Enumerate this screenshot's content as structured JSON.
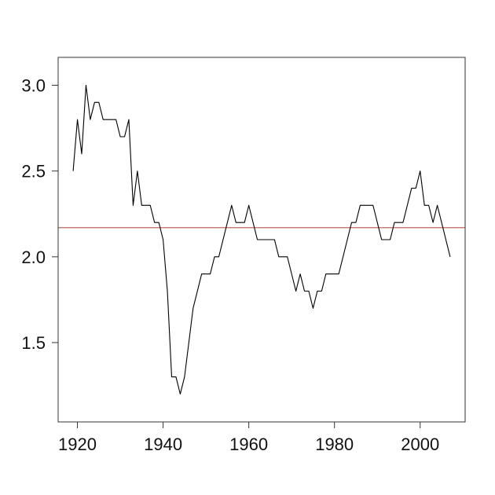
{
  "chart_data": {
    "type": "line",
    "title": "",
    "xlabel": "",
    "ylabel": "",
    "xlim": [
      1915.5,
      2010.5
    ],
    "ylim": [
      1.0375,
      3.1625
    ],
    "x_ticks": [
      1920,
      1940,
      1960,
      1980,
      2000
    ],
    "x_tick_labels": [
      "1920",
      "1940",
      "1960",
      "1980",
      "2000"
    ],
    "y_ticks": [
      1.5,
      2.0,
      2.5,
      3.0
    ],
    "y_tick_labels": [
      "1.5",
      "2.0",
      "2.5",
      "3.0"
    ],
    "grid": false,
    "legend": "none",
    "series": [
      {
        "color": "#000000",
        "x": [
          1919,
          1920,
          1921,
          1922,
          1923,
          1924,
          1925,
          1926,
          1927,
          1928,
          1929,
          1930,
          1931,
          1932,
          1933,
          1934,
          1935,
          1936,
          1937,
          1938,
          1939,
          1940,
          1941,
          1942,
          1943,
          1944,
          1945,
          1946,
          1947,
          1948,
          1949,
          1950,
          1951,
          1952,
          1953,
          1954,
          1955,
          1956,
          1957,
          1958,
          1959,
          1960,
          1961,
          1962,
          1963,
          1964,
          1965,
          1966,
          1967,
          1968,
          1969,
          1970,
          1971,
          1972,
          1973,
          1974,
          1975,
          1976,
          1977,
          1978,
          1979,
          1980,
          1981,
          1982,
          1983,
          1984,
          1985,
          1986,
          1987,
          1988,
          1989,
          1990,
          1991,
          1992,
          1993,
          1994,
          1995,
          1996,
          1997,
          1998,
          1999,
          2000,
          2001,
          2002,
          2003,
          2004,
          2005,
          2006,
          2007
        ],
        "y": [
          2.5,
          2.8,
          2.6,
          3.0,
          2.8,
          2.9,
          2.9,
          2.8,
          2.8,
          2.8,
          2.8,
          2.7,
          2.7,
          2.8,
          2.3,
          2.5,
          2.3,
          2.3,
          2.3,
          2.2,
          2.2,
          2.1,
          1.8,
          1.3,
          1.3,
          1.2,
          1.3,
          1.5,
          1.7,
          1.8,
          1.9,
          1.9,
          1.9,
          2.0,
          2.0,
          2.1,
          2.2,
          2.3,
          2.2,
          2.2,
          2.2,
          2.3,
          2.2,
          2.1,
          2.1,
          2.1,
          2.1,
          2.1,
          2.0,
          2.0,
          2.0,
          1.9,
          1.8,
          1.9,
          1.8,
          1.8,
          1.7,
          1.8,
          1.8,
          1.9,
          1.9,
          1.9,
          1.9,
          2.0,
          2.1,
          2.2,
          2.2,
          2.3,
          2.3,
          2.3,
          2.3,
          2.2,
          2.1,
          2.1,
          2.1,
          2.2,
          2.2,
          2.2,
          2.3,
          2.4,
          2.4,
          2.5,
          2.3,
          2.3,
          2.2,
          2.3,
          2.2,
          2.1,
          2.0
        ]
      }
    ],
    "reference_lines": [
      {
        "orientation": "horizontal",
        "y": 2.17,
        "color": "#c0655e"
      }
    ]
  }
}
